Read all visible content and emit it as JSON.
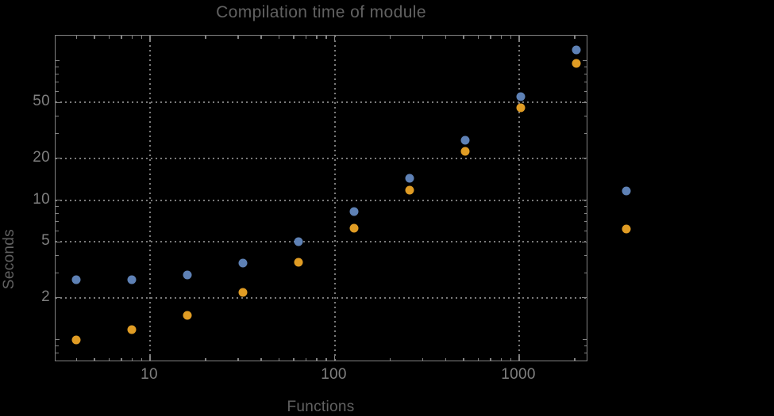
{
  "title": "Compilation time of module",
  "colors": {
    "background": "#000000",
    "frame": "#828282",
    "grid": "#7a7a7a",
    "heading_text": "#616161",
    "tick_text": "#7f7f7f",
    "series1": "#5E81B5",
    "series2": "#E09C24"
  },
  "chart_data": {
    "type": "scatter",
    "title": "Compilation time of module",
    "xlabel": "Functions",
    "ylabel": "Seconds",
    "x_scale": "log",
    "y_scale": "log",
    "grid": "dotted",
    "x": [
      4,
      8,
      16,
      32,
      64,
      128,
      256,
      512,
      1024,
      2048
    ],
    "series": [
      {
        "name": "series-1-blue",
        "color": "#5E81B5",
        "values": [
          2.7,
          2.7,
          2.9,
          3.55,
          5.05,
          8.3,
          14.3,
          26.7,
          55,
          120
        ]
      },
      {
        "name": "series-2-orange",
        "color": "#E09C24",
        "values": [
          1.0,
          1.18,
          1.5,
          2.18,
          3.6,
          6.3,
          11.8,
          22.3,
          46,
          96
        ]
      }
    ],
    "x_tick_labels": [
      "10",
      "100",
      "1000"
    ],
    "x_tick_values": [
      10,
      100,
      1000
    ],
    "y_tick_labels": [
      "2",
      "5",
      "10",
      "20",
      "50"
    ],
    "y_tick_values": [
      2,
      5,
      10,
      20,
      50
    ],
    "x_minor_ticks": [
      4,
      5,
      6,
      7,
      8,
      9,
      20,
      30,
      40,
      50,
      60,
      70,
      80,
      90,
      200,
      300,
      400,
      500,
      600,
      700,
      800,
      900,
      2000
    ],
    "y_minor_ticks": [
      0.7,
      0.8,
      0.9,
      1,
      3,
      4,
      6,
      7,
      8,
      9,
      30,
      40,
      60,
      70,
      80,
      90,
      100
    ],
    "x_range": [
      3.1,
      2340
    ],
    "y_range": [
      0.69,
      151
    ],
    "legend": {
      "position": "outside-right",
      "labels_visible": false,
      "marker_colors": [
        "#5E81B5",
        "#E09C24"
      ]
    }
  }
}
